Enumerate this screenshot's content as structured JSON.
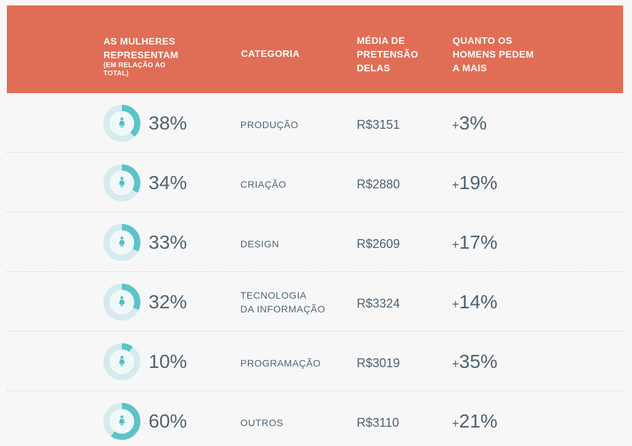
{
  "header": {
    "col_women": "AS MULHERES REPRESENTAM",
    "col_women_sub": "(EM RELAÇÃO AO TOTAL)",
    "col_category": "CATEGORIA",
    "col_avg": "MÉDIA DE PRETENSÃO DELAS",
    "col_more": "QUANTO OS HOMENS PEDEM A MAIS"
  },
  "colors": {
    "header_bg": "#e06e56",
    "donut_fill": "#5bc3c9",
    "donut_track": "#d5ebee",
    "donut_center": "#f1f8f9",
    "icon": "#4fbcc4",
    "text": "#4e6372"
  },
  "icon": "woman-icon",
  "chart_data": {
    "type": "table",
    "columns": [
      "AS MULHERES REPRESENTAM (EM RELAÇÃO AO TOTAL)",
      "CATEGORIA",
      "MÉDIA DE PRETENSÃO DELAS",
      "QUANTO OS HOMENS PEDEM A MAIS"
    ],
    "rows": [
      {
        "women_share": 38,
        "women_label": "38%",
        "category": [
          "PRODUÇÃO"
        ],
        "avg": "R$3151",
        "more": "3%"
      },
      {
        "women_share": 34,
        "women_label": "34%",
        "category": [
          "CRIAÇÃO"
        ],
        "avg": "R$2880",
        "more": "19%"
      },
      {
        "women_share": 33,
        "women_label": "33%",
        "category": [
          "DESIGN"
        ],
        "avg": "R$2609",
        "more": "17%"
      },
      {
        "women_share": 32,
        "women_label": "32%",
        "category": [
          "TECNOLOGIA",
          "DA INFORMAÇÃO"
        ],
        "avg": "R$3324",
        "more": "14%"
      },
      {
        "women_share": 10,
        "women_label": "10%",
        "category": [
          "PROGRAMAÇÃO"
        ],
        "avg": "R$3019",
        "more": "35%"
      },
      {
        "women_share": 60,
        "women_label": "60%",
        "category": [
          "OUTROS"
        ],
        "avg": "R$3110",
        "more": "21%"
      }
    ]
  }
}
